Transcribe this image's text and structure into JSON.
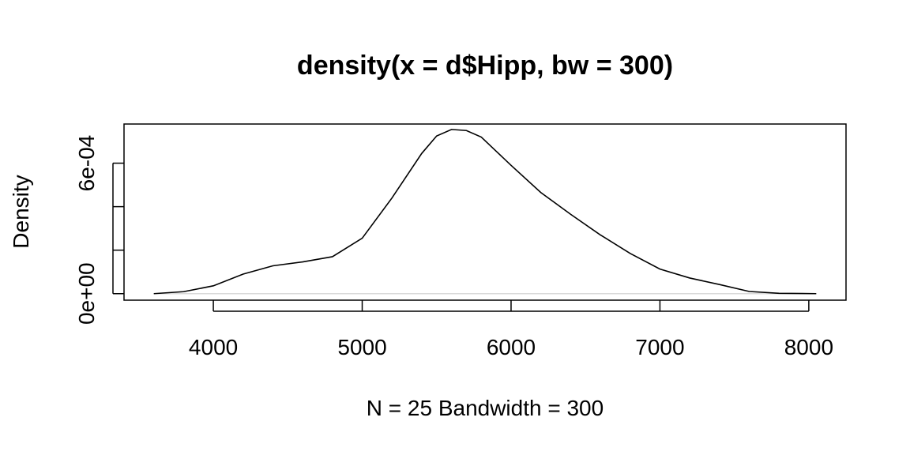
{
  "chart_data": {
    "type": "line",
    "title": "density(x = d$Hipp, bw = 300)",
    "xlabel": "N = 25   Bandwidth = 300",
    "ylabel": "Density",
    "xlim": [
      3400,
      8250
    ],
    "ylim": [
      -3e-05,
      0.00078
    ],
    "x_ticks": [
      4000,
      5000,
      6000,
      7000,
      8000
    ],
    "x_tick_labels": [
      "4000",
      "5000",
      "6000",
      "7000",
      "8000"
    ],
    "y_ticks": [
      0,
      0.0002,
      0.0004,
      0.0006
    ],
    "y_tick_labels": [
      "0e+00",
      "",
      "",
      "6e-04"
    ],
    "grid": false,
    "series": [
      {
        "x": [
          3600,
          3800,
          4000,
          4200,
          4400,
          4600,
          4800,
          5000,
          5200,
          5400,
          5500,
          5600,
          5700,
          5800,
          5900,
          6000,
          6200,
          6400,
          6600,
          6800,
          7000,
          7200,
          7400,
          7600,
          7800,
          8050
        ],
        "y": [
          0.0,
          9e-06,
          3.6e-05,
          9e-05,
          0.000128,
          0.000146,
          0.00017,
          0.000255,
          0.00044,
          0.000645,
          0.000725,
          0.000755,
          0.00075,
          0.00072,
          0.000655,
          0.00059,
          0.000465,
          0.000365,
          0.00027,
          0.000185,
          0.000113,
          7.2e-05,
          4.2e-05,
          1e-05,
          1.5e-06,
          0.0
        ]
      }
    ]
  }
}
